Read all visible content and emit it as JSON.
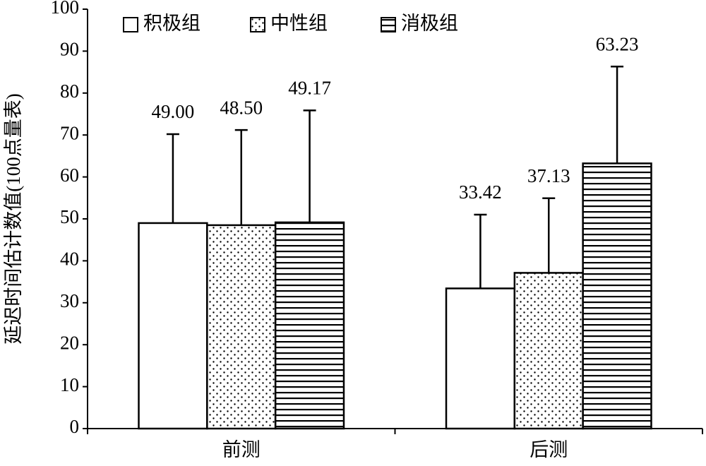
{
  "chart_data": {
    "type": "bar",
    "ylabel": "延迟时间估计数值(100点量表)",
    "categories": [
      "前测",
      "后测"
    ],
    "series": [
      {
        "name": "积极组",
        "pattern": "none",
        "color": "#000000",
        "values": [
          49.0,
          33.42
        ],
        "value_labels": [
          "49.00",
          "33.42"
        ],
        "errors": [
          21.2,
          17.6
        ]
      },
      {
        "name": "中性组",
        "pattern": "dots",
        "color": "#000000",
        "values": [
          48.5,
          37.13
        ],
        "value_labels": [
          "48.50",
          "37.13"
        ],
        "errors": [
          22.7,
          17.8
        ]
      },
      {
        "name": "消极组",
        "pattern": "hlines",
        "color": "#000000",
        "values": [
          49.17,
          63.23
        ],
        "value_labels": [
          "49.17",
          "63.23"
        ],
        "errors": [
          26.7,
          23.1
        ]
      }
    ],
    "ylim": [
      0,
      100
    ],
    "yticks": [
      0,
      10,
      20,
      30,
      40,
      50,
      60,
      70,
      80,
      90,
      100
    ],
    "legend": "top-left",
    "grid": false
  }
}
